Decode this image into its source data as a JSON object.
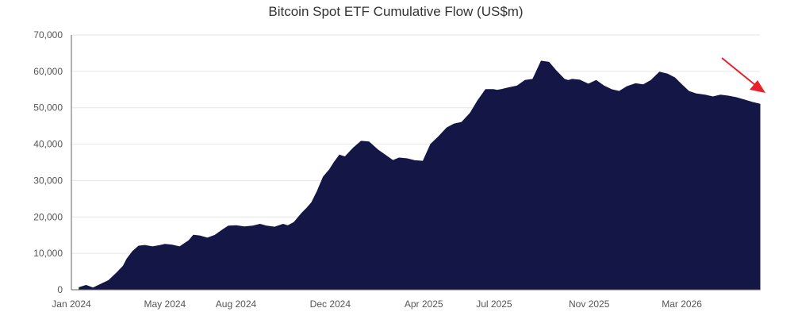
{
  "chart_data": {
    "type": "area",
    "title": "Bitcoin Spot ETF Cumulative Flow (US$m)",
    "xlabel": "",
    "ylabel": "",
    "ylim": [
      0,
      70000
    ],
    "x_axis": {
      "start": "2024-01-01",
      "end": "2026-06-10",
      "tick_labels": [
        "Jan 2024",
        "May 2024",
        "Aug 2024",
        "Dec 2024",
        "Apr 2025",
        "Jul 2025",
        "Nov 2025",
        "Mar 2026"
      ],
      "tick_dates": [
        "2024-01-01",
        "2024-05-01",
        "2024-08-01",
        "2024-12-01",
        "2025-04-01",
        "2025-07-01",
        "2025-11-01",
        "2026-03-01"
      ]
    },
    "y_axis": {
      "tick_values": [
        0,
        10000,
        20000,
        30000,
        40000,
        50000,
        60000,
        70000
      ],
      "tick_labels": [
        "0",
        "10,000",
        "20,000",
        "30,000",
        "40,000",
        "50,000",
        "60,000",
        "70,000"
      ]
    },
    "grid": true,
    "legend": "none",
    "fill_color": "#141645",
    "annotation": {
      "type": "arrow",
      "color": "#e8202a",
      "meaning": "downward trend at latest data"
    },
    "series": [
      {
        "dates": [
          "2024-01-11",
          "2024-01-20",
          "2024-01-29",
          "2024-02-08",
          "2024-02-18",
          "2024-02-28",
          "2024-03-08",
          "2024-03-13",
          "2024-03-20",
          "2024-03-28",
          "2024-04-05",
          "2024-04-15",
          "2024-04-25",
          "2024-05-01",
          "2024-05-10",
          "2024-05-20",
          "2024-06-01",
          "2024-06-07",
          "2024-06-15",
          "2024-06-25",
          "2024-07-05",
          "2024-07-15",
          "2024-07-22",
          "2024-08-01",
          "2024-08-12",
          "2024-08-22",
          "2024-09-01",
          "2024-09-10",
          "2024-09-20",
          "2024-10-01",
          "2024-10-07",
          "2024-10-15",
          "2024-10-25",
          "2024-11-01",
          "2024-11-07",
          "2024-11-14",
          "2024-11-22",
          "2024-11-30",
          "2024-12-06",
          "2024-12-13",
          "2024-12-20",
          "2024-12-31",
          "2025-01-10",
          "2025-01-20",
          "2025-01-31",
          "2025-02-10",
          "2025-02-20",
          "2025-02-28",
          "2025-03-10",
          "2025-03-20",
          "2025-03-31",
          "2025-04-10",
          "2025-04-20",
          "2025-05-01",
          "2025-05-10",
          "2025-05-20",
          "2025-05-31",
          "2025-06-10",
          "2025-06-20",
          "2025-06-30",
          "2025-07-05",
          "2025-07-10",
          "2025-07-20",
          "2025-07-31",
          "2025-08-10",
          "2025-08-20",
          "2025-08-31",
          "2025-09-10",
          "2025-09-20",
          "2025-09-30",
          "2025-10-05",
          "2025-10-10",
          "2025-10-20",
          "2025-10-31",
          "2025-11-10",
          "2025-11-20",
          "2025-11-30",
          "2025-12-10",
          "2025-12-20",
          "2025-12-31",
          "2026-01-10",
          "2026-01-20",
          "2026-01-31",
          "2026-02-10",
          "2026-02-20",
          "2026-02-28",
          "2026-03-10",
          "2026-03-20",
          "2026-03-31",
          "2026-04-10",
          "2026-04-20",
          "2026-04-30",
          "2026-05-10",
          "2026-05-20",
          "2026-05-31",
          "2026-06-10"
        ],
        "values": [
          600,
          1200,
          500,
          1500,
          2500,
          4500,
          6500,
          8500,
          10500,
          12000,
          12200,
          11800,
          12200,
          12500,
          12300,
          11800,
          13500,
          15000,
          14800,
          14200,
          15000,
          16500,
          17500,
          17600,
          17300,
          17500,
          18000,
          17500,
          17200,
          18000,
          17600,
          18500,
          21000,
          22500,
          24000,
          27000,
          31000,
          33000,
          35000,
          37000,
          36500,
          39000,
          40800,
          40600,
          38500,
          37000,
          35500,
          36200,
          36000,
          35500,
          35300,
          40000,
          42000,
          44500,
          45500,
          46000,
          48500,
          52000,
          55000,
          55000,
          54800,
          55000,
          55500,
          56000,
          57500,
          57800,
          62800,
          62500,
          60000,
          57800,
          57500,
          57800,
          57600,
          56500,
          57500,
          56000,
          55000,
          54500,
          55800,
          56600,
          56300,
          57500,
          59800,
          59300,
          58200,
          56500,
          54500,
          53800,
          53500,
          53000,
          53500,
          53200,
          52800,
          52200,
          51500,
          51000
        ]
      }
    ]
  }
}
